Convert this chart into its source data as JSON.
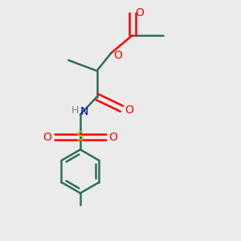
{
  "bg_color": "#ebebeb",
  "bond_color": "#2d6e5e",
  "o_color": "#ff0000",
  "n_color": "#0000cc",
  "s_color": "#cccc00",
  "h_color": "#808080",
  "line_width": 1.8,
  "figsize": [
    3.0,
    3.0
  ],
  "dpi": 100,
  "xlim": [
    0,
    10
  ],
  "ylim": [
    0,
    10
  ]
}
